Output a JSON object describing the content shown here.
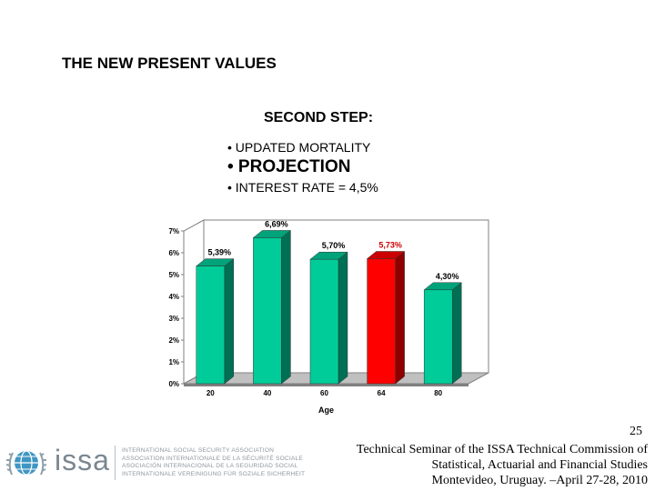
{
  "slide": {
    "title": "THE NEW PRESENT VALUES",
    "subtitle": "SECOND STEP:",
    "bullets": [
      "• UPDATED MORTALITY",
      "• PROJECTION",
      "• INTEREST RATE = 4,5%"
    ]
  },
  "chart_data": {
    "type": "bar",
    "categories": [
      "20",
      "40",
      "60",
      "64",
      "80"
    ],
    "values": [
      5.39,
      6.69,
      5.7,
      5.73,
      4.3
    ],
    "data_labels": [
      "5,39%",
      "6,69%",
      "5,70%",
      "5,73%",
      "4,30%"
    ],
    "value_label_colors": [
      "#000000",
      "#000000",
      "#000000",
      "#cc0000",
      "#000000"
    ],
    "bar_colors": [
      "#00cc99",
      "#00cc99",
      "#00cc99",
      "#ff0000",
      "#00cc99"
    ],
    "highlight_category": "64",
    "xlabel": "Age",
    "ylabel": "",
    "ylim": [
      0,
      7
    ],
    "yticks": [
      "0%",
      "1%",
      "2%",
      "3%",
      "4%",
      "5%",
      "6%",
      "7%"
    ],
    "grid": false,
    "style": "3d"
  },
  "footer": {
    "page_number": "25",
    "lines": [
      "Technical Seminar of the ISSA Technical Commission of",
      "Statistical, Actuarial and Financial Studies",
      "Montevideo, Uruguay. –April 27-28, 2010"
    ]
  },
  "logo": {
    "wordmark": "issa",
    "association_lines": [
      "INTERNATIONAL SOCIAL SECURITY ASSOCIATION",
      "ASSOCIATION INTERNATIONALE DE LA SÉCURITÉ SOCIALE",
      "ASOCIACIÓN INTERNACIONAL DE LA SEGURIDAD SOCIAL",
      "INTERNATIONALE VEREINIGUNG FÜR SOZIALE SICHERHEIT"
    ]
  }
}
